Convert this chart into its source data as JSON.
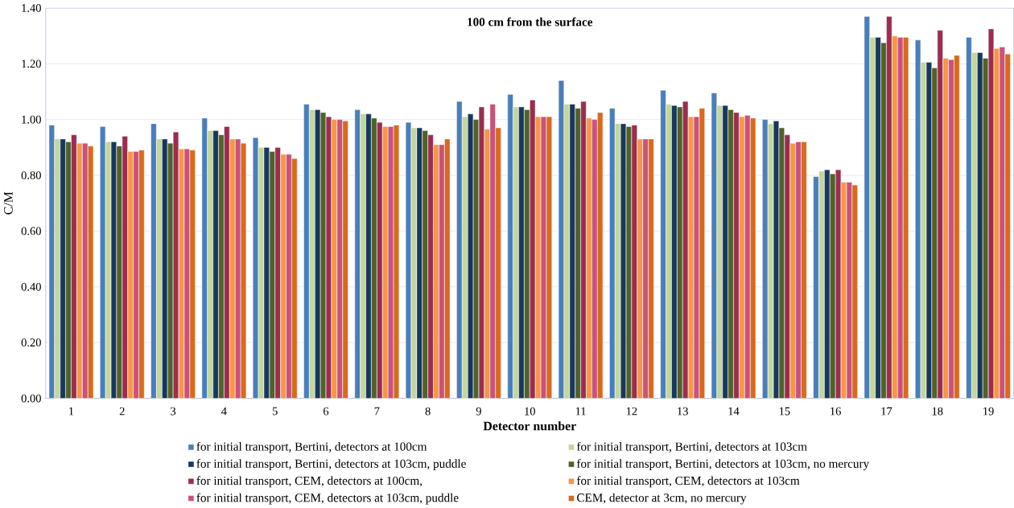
{
  "chart_data": {
    "type": "bar",
    "title": "100 cm from the surface",
    "xlabel": "Detector number",
    "ylabel": "C/M",
    "categories": [
      "1",
      "2",
      "3",
      "4",
      "5",
      "6",
      "7",
      "8",
      "9",
      "10",
      "11",
      "12",
      "13",
      "14",
      "15",
      "16",
      "17",
      "18",
      "19"
    ],
    "ylim": [
      0,
      1.4
    ],
    "yticks": [
      {
        "value": 0,
        "label": "0.00"
      },
      {
        "value": 0.2,
        "label": "0.20"
      },
      {
        "value": 0.4,
        "label": "0.40"
      },
      {
        "value": 0.6,
        "label": "0.60"
      },
      {
        "value": 0.8,
        "label": "0.80"
      },
      {
        "value": 1.0,
        "label": "1.00"
      },
      {
        "value": 1.2,
        "label": "1.20"
      },
      {
        "value": 1.4,
        "label": "1.40"
      }
    ],
    "grid": "y",
    "legend": "bottom",
    "series": [
      {
        "name": "for initial transport, Bertini, detectors at 100cm",
        "color": "#4a7ebb",
        "values": [
          0.98,
          0.975,
          0.985,
          1.005,
          0.935,
          1.055,
          1.035,
          0.99,
          1.065,
          1.09,
          1.14,
          1.04,
          1.105,
          1.095,
          1.0,
          0.795,
          1.37,
          1.285,
          1.295
        ]
      },
      {
        "name": "for initial transport, Bertini, detectors at 103cm",
        "color": "#c3d69b",
        "values": [
          0.93,
          0.92,
          0.93,
          0.96,
          0.9,
          1.035,
          1.02,
          0.97,
          1.01,
          1.045,
          1.055,
          0.985,
          1.055,
          1.05,
          0.985,
          0.815,
          1.295,
          1.205,
          1.24
        ]
      },
      {
        "name": "for initial transport, Bertini, detectors at 103cm, puddle",
        "color": "#17375e",
        "values": [
          0.93,
          0.92,
          0.93,
          0.96,
          0.9,
          1.035,
          1.02,
          0.97,
          1.02,
          1.045,
          1.055,
          0.985,
          1.05,
          1.05,
          0.995,
          0.82,
          1.295,
          1.205,
          1.24
        ]
      },
      {
        "name": "for initial transport, Bertini, detectors at 103cm, no mercury",
        "color": "#4f6228",
        "values": [
          0.92,
          0.905,
          0.915,
          0.945,
          0.885,
          1.025,
          1.005,
          0.96,
          1.0,
          1.035,
          1.04,
          0.975,
          1.045,
          1.035,
          0.97,
          0.805,
          1.275,
          1.185,
          1.22
        ]
      },
      {
        "name": "for initial transport, CEM, detectors at 100cm,",
        "color": "#9b2d50",
        "values": [
          0.945,
          0.94,
          0.955,
          0.975,
          0.9,
          1.01,
          0.99,
          0.945,
          1.045,
          1.07,
          1.065,
          0.98,
          1.065,
          1.025,
          0.945,
          0.82,
          1.37,
          1.32,
          1.325
        ]
      },
      {
        "name": "for initial transport, CEM, detectors at 103cm",
        "color": "#f79646",
        "values": [
          0.915,
          0.885,
          0.895,
          0.93,
          0.875,
          1.0,
          0.975,
          0.91,
          0.965,
          1.01,
          1.005,
          0.93,
          1.01,
          1.01,
          0.915,
          0.775,
          1.3,
          1.22,
          1.255
        ]
      },
      {
        "name": "for initial transport, CEM, detectors at 103cm, puddle",
        "color": "#c9527c",
        "values": [
          0.915,
          0.885,
          0.895,
          0.93,
          0.875,
          1.0,
          0.975,
          0.91,
          1.055,
          1.01,
          1.0,
          0.93,
          1.01,
          1.015,
          0.92,
          0.775,
          1.295,
          1.215,
          1.26
        ]
      },
      {
        "name": "CEM, detector at 3cm, no mercury",
        "color": "#d86a1e",
        "values": [
          0.905,
          0.89,
          0.89,
          0.915,
          0.86,
          0.995,
          0.98,
          0.93,
          0.97,
          1.01,
          1.025,
          0.93,
          1.04,
          1.005,
          0.92,
          0.765,
          1.295,
          1.23,
          1.235
        ]
      }
    ]
  }
}
